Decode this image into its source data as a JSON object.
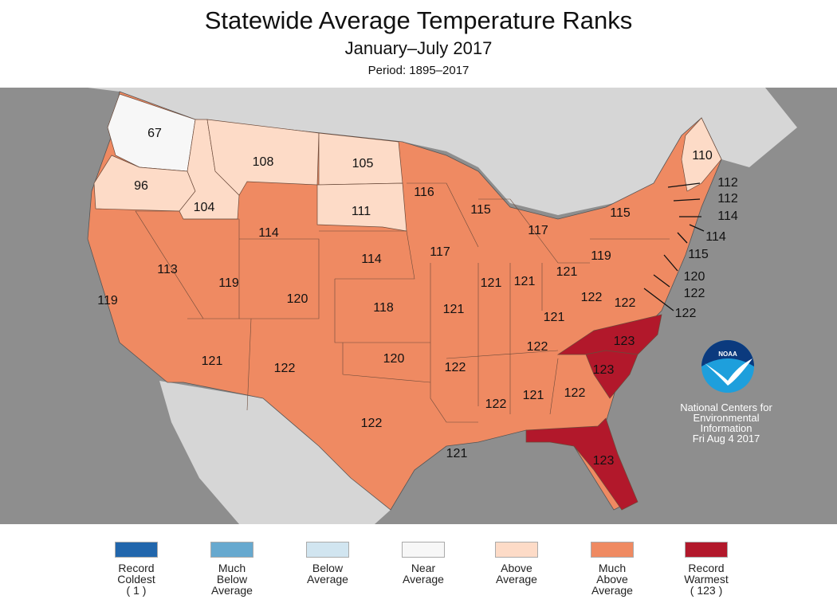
{
  "title": "Statewide Average Temperature Ranks",
  "subtitle": "January–July 2017",
  "period": "Period: 1895–2017",
  "colors": {
    "ocean": "#8e8e8e",
    "land_other": "#d6d6d6",
    "record_coldest": "#2166ac",
    "much_below": "#67a9cf",
    "below": "#d1e5f0",
    "near": "#f7f7f7",
    "above": "#fddbc7",
    "much_above": "#ef8a62",
    "record_warmest": "#b2182b"
  },
  "states": [
    {
      "name": "WA",
      "rank": "67",
      "category": "near"
    },
    {
      "name": "OR",
      "rank": "96",
      "category": "above"
    },
    {
      "name": "ID",
      "rank": "104",
      "category": "above"
    },
    {
      "name": "MT",
      "rank": "108",
      "category": "above"
    },
    {
      "name": "ND",
      "rank": "105",
      "category": "above"
    },
    {
      "name": "SD",
      "rank": "111",
      "category": "above"
    },
    {
      "name": "ME",
      "rank": "110",
      "category": "above"
    },
    {
      "name": "NH",
      "rank": "112",
      "category": "much_above"
    },
    {
      "name": "VT",
      "rank": "112",
      "category": "much_above"
    },
    {
      "name": "MA",
      "rank": "114",
      "category": "much_above"
    },
    {
      "name": "RI",
      "rank": "114",
      "category": "much_above"
    },
    {
      "name": "CT",
      "rank": "115",
      "category": "much_above"
    },
    {
      "name": "NJ",
      "rank": "120",
      "category": "much_above"
    },
    {
      "name": "DE",
      "rank": "122",
      "category": "much_above"
    },
    {
      "name": "MD",
      "rank": "122",
      "category": "much_above"
    },
    {
      "name": "MN",
      "rank": "116",
      "category": "much_above"
    },
    {
      "name": "WI",
      "rank": "115",
      "category": "much_above"
    },
    {
      "name": "MI",
      "rank": "117",
      "category": "much_above"
    },
    {
      "name": "NY",
      "rank": "115",
      "category": "much_above"
    },
    {
      "name": "PA",
      "rank": "119",
      "category": "much_above"
    },
    {
      "name": "WY",
      "rank": "114",
      "category": "much_above"
    },
    {
      "name": "NE",
      "rank": "114",
      "category": "much_above"
    },
    {
      "name": "IA",
      "rank": "117",
      "category": "much_above"
    },
    {
      "name": "CA",
      "rank": "119",
      "category": "much_above"
    },
    {
      "name": "NV",
      "rank": "113",
      "category": "much_above"
    },
    {
      "name": "UT",
      "rank": "119",
      "category": "much_above"
    },
    {
      "name": "CO",
      "rank": "120",
      "category": "much_above"
    },
    {
      "name": "KS",
      "rank": "118",
      "category": "much_above"
    },
    {
      "name": "MO",
      "rank": "121",
      "category": "much_above"
    },
    {
      "name": "IL",
      "rank": "121",
      "category": "much_above"
    },
    {
      "name": "IN",
      "rank": "121",
      "category": "much_above"
    },
    {
      "name": "OH",
      "rank": "121",
      "category": "much_above"
    },
    {
      "name": "WV",
      "rank": "122",
      "category": "much_above"
    },
    {
      "name": "VA",
      "rank": "122",
      "category": "much_above"
    },
    {
      "name": "KY",
      "rank": "121",
      "category": "much_above"
    },
    {
      "name": "TN",
      "rank": "122",
      "category": "much_above"
    },
    {
      "name": "NC",
      "rank": "123",
      "category": "record_warmest"
    },
    {
      "name": "SC",
      "rank": "123",
      "category": "record_warmest"
    },
    {
      "name": "AZ",
      "rank": "121",
      "category": "much_above"
    },
    {
      "name": "NM",
      "rank": "122",
      "category": "much_above"
    },
    {
      "name": "OK",
      "rank": "120",
      "category": "much_above"
    },
    {
      "name": "AR",
      "rank": "122",
      "category": "much_above"
    },
    {
      "name": "TX",
      "rank": "122",
      "category": "much_above"
    },
    {
      "name": "LA",
      "rank": "121",
      "category": "much_above"
    },
    {
      "name": "MS",
      "rank": "122",
      "category": "much_above"
    },
    {
      "name": "AL",
      "rank": "121",
      "category": "much_above"
    },
    {
      "name": "GA",
      "rank": "122",
      "category": "much_above"
    },
    {
      "name": "FL",
      "rank": "123",
      "category": "record_warmest"
    }
  ],
  "legend": [
    {
      "label": "Record Coldest",
      "extra": "( 1 )",
      "color": "#2166ac"
    },
    {
      "label": "Much Below Average",
      "extra": "",
      "color": "#67a9cf"
    },
    {
      "label": "Below Average",
      "extra": "",
      "color": "#d1e5f0"
    },
    {
      "label": "Near Average",
      "extra": "",
      "color": "#f7f7f7"
    },
    {
      "label": "Above Average",
      "extra": "",
      "color": "#fddbc7"
    },
    {
      "label": "Much Above Average",
      "extra": "",
      "color": "#ef8a62"
    },
    {
      "label": "Record Warmest",
      "extra": "( 123 )",
      "color": "#b2182b"
    }
  ],
  "attribution": {
    "logo": "NOAA",
    "line1": "National Centers for",
    "line2": "Environmental",
    "line3": "Information",
    "date": "Fri Aug  4 2017"
  }
}
